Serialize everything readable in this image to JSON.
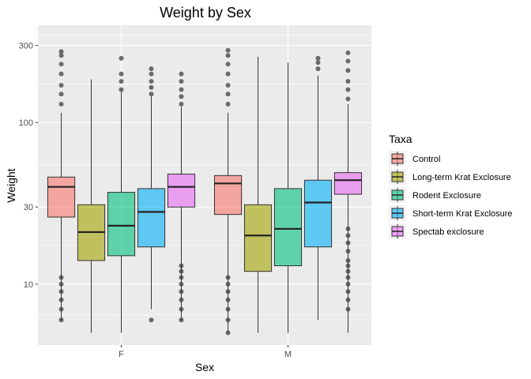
{
  "chart_data": {
    "type": "box",
    "title": "Weight by Sex",
    "xlabel": "Sex",
    "ylabel": "Weight",
    "yscale": "log10",
    "ylim": [
      4.2,
      400
    ],
    "yticks": [
      10,
      30,
      100,
      300
    ],
    "ytick_labels": [
      "10",
      "30",
      "100",
      "300"
    ],
    "grid": true,
    "background": "#ebebeb",
    "categories": [
      "F",
      "M"
    ],
    "legend": {
      "title": "Taxa",
      "position": "right"
    },
    "series": [
      {
        "name": "Control",
        "color": "#f8766d",
        "boxes": [
          {
            "category": "F",
            "min": 6,
            "q1": 26,
            "median": 40,
            "q3": 46,
            "max": 115,
            "outliers_low": [
              6,
              7,
              8,
              9,
              10,
              11
            ],
            "outliers_high": [
              130,
              150,
              170,
              200,
              230,
              260,
              275
            ]
          },
          {
            "category": "M",
            "min": 5,
            "q1": 27,
            "median": 42,
            "q3": 47,
            "max": 115,
            "outliers_low": [
              5,
              6,
              7,
              8,
              9,
              10,
              11
            ],
            "outliers_high": [
              130,
              150,
              170,
              200,
              230,
              260,
              280
            ]
          }
        ]
      },
      {
        "name": "Long-term Krat Exclosure",
        "color": "#a3a500",
        "boxes": [
          {
            "category": "F",
            "min": 5,
            "q1": 14,
            "median": 21,
            "q3": 31,
            "max": 185,
            "outliers_low": [],
            "outliers_high": []
          },
          {
            "category": "M",
            "min": 5,
            "q1": 12,
            "median": 20,
            "q3": 31,
            "max": 255,
            "outliers_low": [],
            "outliers_high": []
          }
        ]
      },
      {
        "name": "Rodent Exclosure",
        "color": "#00bf7d",
        "boxes": [
          {
            "category": "F",
            "min": 5,
            "q1": 15,
            "median": 23,
            "q3": 37,
            "max": 155,
            "outliers_low": [],
            "outliers_high": [
              160,
              180,
              200,
              250
            ]
          },
          {
            "category": "M",
            "min": 5,
            "q1": 13,
            "median": 22,
            "q3": 39,
            "max": 235,
            "outliers_low": [],
            "outliers_high": []
          }
        ]
      },
      {
        "name": "Short-term Krat Exclosure",
        "color": "#00b0f6",
        "boxes": [
          {
            "category": "F",
            "min": 7,
            "q1": 17,
            "median": 28,
            "q3": 39,
            "max": 145,
            "outliers_low": [
              6
            ],
            "outliers_high": [
              150,
              165,
              180,
              200,
              215
            ]
          },
          {
            "category": "M",
            "min": 6,
            "q1": 17,
            "median": 32,
            "q3": 44,
            "max": 195,
            "outliers_low": [],
            "outliers_high": [
              215,
              235,
              250
            ]
          }
        ]
      },
      {
        "name": "Spectab exclosure",
        "color": "#e76bf3",
        "boxes": [
          {
            "category": "F",
            "min": 6,
            "q1": 30,
            "median": 40,
            "q3": 48,
            "max": 125,
            "outliers_low": [
              6,
              7,
              8,
              9,
              10,
              11,
              12,
              13
            ],
            "outliers_high": [
              130,
              145,
              160,
              180,
              200
            ]
          },
          {
            "category": "M",
            "min": 5,
            "q1": 36,
            "median": 44,
            "q3": 49,
            "max": 130,
            "outliers_low": [
              7,
              8,
              9,
              10,
              11,
              12,
              13,
              14,
              16,
              18,
              20,
              22
            ],
            "outliers_high": [
              140,
              160,
              180,
              210,
              240,
              270
            ]
          }
        ]
      }
    ]
  }
}
